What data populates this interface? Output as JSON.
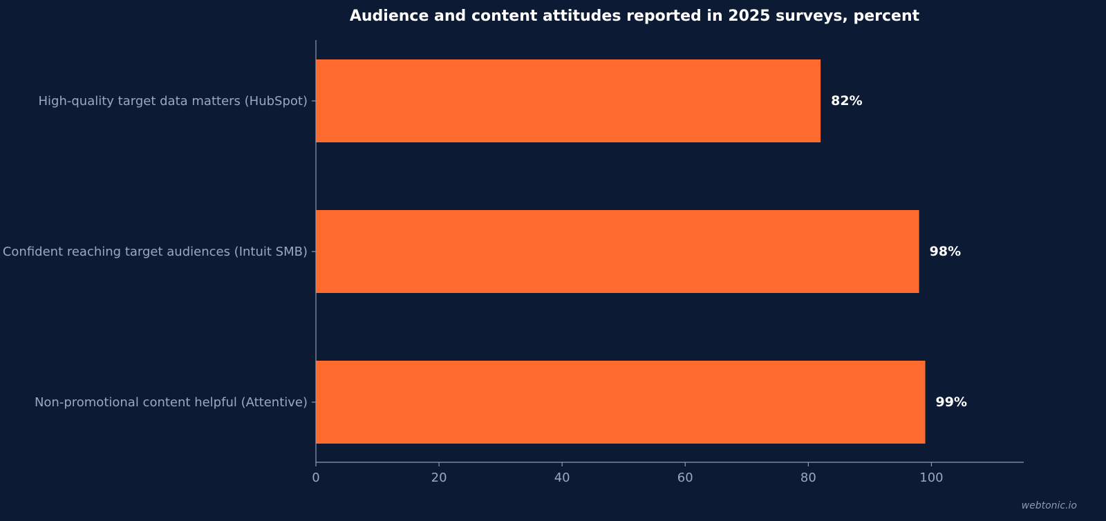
{
  "chart_data": {
    "type": "bar",
    "orientation": "horizontal",
    "title": "Audience and content attitudes reported in 2025 surveys, percent",
    "xlabel": "",
    "ylabel": "",
    "categories": [
      "High-quality target data matters (HubSpot)",
      "Confident reaching target audiences (Intuit SMB)",
      "Non-promotional content helpful (Attentive)"
    ],
    "values": [
      82,
      98,
      99
    ],
    "value_labels": [
      "82%",
      "98%",
      "99%"
    ],
    "xlim": [
      0,
      115
    ],
    "xticks": [
      0,
      20,
      40,
      60,
      80,
      100
    ],
    "xtick_labels": [
      "0",
      "20",
      "40",
      "60",
      "80",
      "100"
    ],
    "grid": false,
    "bar_color": "#ff6b2f",
    "background_color": "#0c1b33"
  },
  "watermark": "webtonic.io"
}
